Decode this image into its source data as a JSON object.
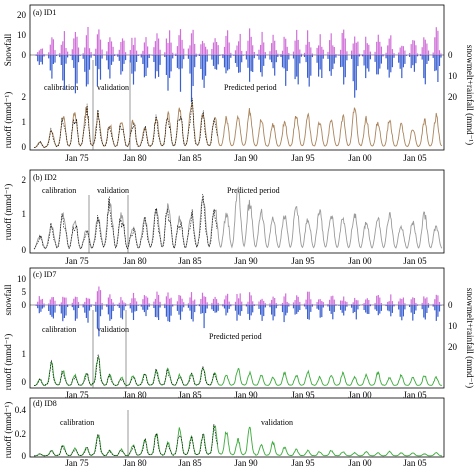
{
  "chart_data": [
    {
      "type": "line",
      "panel_label": "(a) ID1",
      "x_ticks": [
        "Jan 75",
        "Jan 80",
        "Jan 85",
        "Jan 90",
        "Jan 95",
        "Jan 00",
        "Jan 05"
      ],
      "upper": {
        "ylabel": "Snowfall",
        "yticks": [
          "0",
          "10",
          "20"
        ],
        "ylim": [
          0,
          20
        ]
      },
      "lower": {
        "ylabel": "runoff (mmd⁻¹)",
        "yticks": [
          "0",
          "1",
          "2"
        ],
        "ylim": [
          0,
          3
        ]
      },
      "right": {
        "ylabel": "snowmelt+rainfall (mmd⁻¹)",
        "yticks": [
          "0",
          "10",
          "20"
        ]
      },
      "annotations": [
        "calibration",
        "validation",
        "Predicted period"
      ],
      "colors": {
        "snowfall": "#d070d8",
        "forcing": "#3a5fd0",
        "observed": "#000000",
        "simulated": "#a9845c"
      },
      "series": [
        {
          "values": [
            0.3,
            0.9,
            1.6,
            1.8,
            2.0,
            1.7,
            1.2,
            1.3,
            1.4,
            1.0,
            1.5,
            1.7,
            2.0,
            2.3,
            1.8,
            1.6,
            1.5,
            1.7,
            1.9,
            1.4,
            1.2,
            1.3,
            1.7,
            1.6,
            1.3,
            1.5,
            1.6,
            2.0,
            1.5,
            1.3,
            1.4,
            1.2,
            1.0,
            1.4,
            1.6
          ]
        }
      ]
    },
    {
      "type": "line",
      "panel_label": "(b) ID2",
      "x_ticks": [
        "Jan 75",
        "Jan 80",
        "Jan 85",
        "Jan 90",
        "Jan 95",
        "Jan 00",
        "Jan 05"
      ],
      "ylabel": "runoff (mmd⁻¹)",
      "yticks": [
        "0",
        "1",
        "2"
      ],
      "ylim": [
        0,
        2
      ],
      "annotations": [
        "calibration",
        "validation",
        "Predicted period"
      ],
      "colors": {
        "observed": "#000000",
        "simulated": "#9a9a9a"
      },
      "series": [
        {
          "values": [
            0.35,
            0.6,
            0.9,
            0.7,
            0.5,
            0.8,
            1.2,
            0.9,
            0.6,
            0.8,
            1.0,
            1.1,
            0.8,
            0.9,
            1.3,
            1.1,
            0.9,
            1.6,
            1.2,
            1.0,
            0.8,
            0.9,
            1.1,
            0.8,
            1.0,
            0.9,
            0.8,
            0.9,
            0.7,
            0.8,
            0.9,
            0.6,
            0.7,
            0.9,
            0.6
          ]
        }
      ]
    },
    {
      "type": "line",
      "panel_label": "(c) ID7",
      "x_ticks": [
        "Jan 75",
        "Jan 80",
        "Jan 85",
        "Jan 90",
        "Jan 95",
        "Jan 00",
        "Jan 05"
      ],
      "upper": {
        "ylabel": "snowfall",
        "yticks": [
          "0",
          "5",
          "10"
        ],
        "ylim": [
          0,
          10
        ]
      },
      "lower": {
        "ylabel": "runoff (mmd⁻¹)",
        "yticks": [
          "0",
          "1"
        ],
        "ylim": [
          0,
          2
        ]
      },
      "right": {
        "ylabel": "snowmelt+rainfall (mmd⁻¹)",
        "yticks": [
          "0",
          "10",
          "20"
        ]
      },
      "annotations": [
        "calibration",
        "validation",
        "Predicted period"
      ],
      "colors": {
        "snowfall": "#d070d8",
        "forcing": "#3a5fd0",
        "observed": "#000000",
        "simulated": "#3aaa3a"
      },
      "series": [
        {
          "values": [
            0.3,
            1.0,
            0.7,
            0.5,
            0.6,
            1.4,
            0.5,
            0.4,
            0.5,
            0.6,
            0.7,
            0.8,
            0.5,
            0.6,
            0.9,
            0.6,
            0.5,
            0.8,
            0.6,
            0.5,
            0.4,
            0.6,
            0.5,
            0.7,
            0.4,
            0.5,
            0.6,
            0.4,
            0.5,
            0.6,
            0.4,
            0.5,
            0.4,
            0.5,
            0.4
          ]
        }
      ]
    },
    {
      "type": "line",
      "panel_label": "(d) ID8",
      "x_ticks": [
        "Jan 75",
        "Jan 80",
        "Jan 85",
        "Jan 90",
        "Jan 95",
        "Jan 00",
        "Jan 05"
      ],
      "ylabel": "runoff (mmd⁻¹)",
      "yticks": [
        "0",
        "0.2",
        "0.4"
      ],
      "ylim": [
        0,
        0.5
      ],
      "annotations": [
        "calibration",
        "validation"
      ],
      "colors": {
        "observed": "#000000",
        "simulated": "#3aaa3a"
      },
      "series": [
        {
          "values": [
            0.02,
            0.05,
            0.1,
            0.07,
            0.08,
            0.2,
            0.05,
            0.06,
            0.1,
            0.15,
            0.2,
            0.12,
            0.25,
            0.18,
            0.2,
            0.3,
            0.22,
            0.15,
            0.25,
            0.1,
            0.12,
            0.08,
            0.06,
            0.05,
            0.04,
            0.05,
            0.04,
            0.03,
            0.04,
            0.03,
            0.04,
            0.03,
            0.03,
            0.02,
            0.03
          ]
        }
      ]
    }
  ]
}
